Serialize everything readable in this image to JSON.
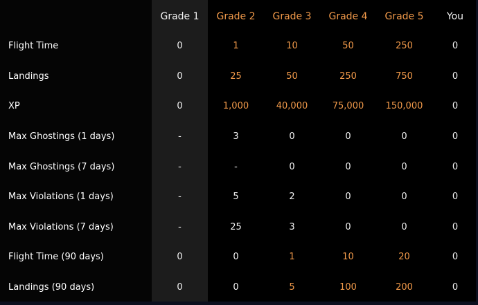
{
  "header": {
    "columns": [
      {
        "label": "Grade 1",
        "color": "#f2f2f2"
      },
      {
        "label": "Grade 2",
        "color": "#f29a4a"
      },
      {
        "label": "Grade 3",
        "color": "#f29a4a"
      },
      {
        "label": "Grade 4",
        "color": "#f29a4a"
      },
      {
        "label": "Grade 5",
        "color": "#f29a4a"
      },
      {
        "label": "You",
        "color": "#f2f2f2"
      }
    ]
  },
  "colors": {
    "background": "#000000",
    "highlight_column": "#1c1c1c",
    "text_white": "#f2f2f2",
    "text_orange": "#f29a4a"
  },
  "rows": [
    {
      "label": "Flight Time",
      "values": [
        {
          "v": "0",
          "c": "white"
        },
        {
          "v": "1",
          "c": "orange"
        },
        {
          "v": "10",
          "c": "orange"
        },
        {
          "v": "50",
          "c": "orange"
        },
        {
          "v": "250",
          "c": "orange"
        },
        {
          "v": "0",
          "c": "white"
        }
      ]
    },
    {
      "label": "Landings",
      "values": [
        {
          "v": "0",
          "c": "white"
        },
        {
          "v": "25",
          "c": "orange"
        },
        {
          "v": "50",
          "c": "orange"
        },
        {
          "v": "250",
          "c": "orange"
        },
        {
          "v": "750",
          "c": "orange"
        },
        {
          "v": "0",
          "c": "white"
        }
      ]
    },
    {
      "label": "XP",
      "values": [
        {
          "v": "0",
          "c": "white"
        },
        {
          "v": "1,000",
          "c": "orange"
        },
        {
          "v": "40,000",
          "c": "orange"
        },
        {
          "v": "75,000",
          "c": "orange"
        },
        {
          "v": "150,000",
          "c": "orange"
        },
        {
          "v": "0",
          "c": "white"
        }
      ]
    },
    {
      "label": "Max Ghostings (1 days)",
      "values": [
        {
          "v": "-",
          "c": "white"
        },
        {
          "v": "3",
          "c": "white"
        },
        {
          "v": "0",
          "c": "white"
        },
        {
          "v": "0",
          "c": "white"
        },
        {
          "v": "0",
          "c": "white"
        },
        {
          "v": "0",
          "c": "white"
        }
      ]
    },
    {
      "label": "Max Ghostings (7 days)",
      "values": [
        {
          "v": "-",
          "c": "white"
        },
        {
          "v": "-",
          "c": "white"
        },
        {
          "v": "0",
          "c": "white"
        },
        {
          "v": "0",
          "c": "white"
        },
        {
          "v": "0",
          "c": "white"
        },
        {
          "v": "0",
          "c": "white"
        }
      ]
    },
    {
      "label": "Max Violations (1 days)",
      "values": [
        {
          "v": "-",
          "c": "white"
        },
        {
          "v": "5",
          "c": "white"
        },
        {
          "v": "2",
          "c": "white"
        },
        {
          "v": "0",
          "c": "white"
        },
        {
          "v": "0",
          "c": "white"
        },
        {
          "v": "0",
          "c": "white"
        }
      ]
    },
    {
      "label": "Max Violations (7 days)",
      "values": [
        {
          "v": "-",
          "c": "white"
        },
        {
          "v": "25",
          "c": "white"
        },
        {
          "v": "3",
          "c": "white"
        },
        {
          "v": "0",
          "c": "white"
        },
        {
          "v": "0",
          "c": "white"
        },
        {
          "v": "0",
          "c": "white"
        }
      ]
    },
    {
      "label": "Flight Time (90 days)",
      "values": [
        {
          "v": "0",
          "c": "white"
        },
        {
          "v": "0",
          "c": "white"
        },
        {
          "v": "1",
          "c": "orange"
        },
        {
          "v": "10",
          "c": "orange"
        },
        {
          "v": "20",
          "c": "orange"
        },
        {
          "v": "0",
          "c": "white"
        }
      ]
    },
    {
      "label": "Landings (90 days)",
      "values": [
        {
          "v": "0",
          "c": "white"
        },
        {
          "v": "0",
          "c": "white"
        },
        {
          "v": "5",
          "c": "orange"
        },
        {
          "v": "100",
          "c": "orange"
        },
        {
          "v": "200",
          "c": "orange"
        },
        {
          "v": "0",
          "c": "white"
        }
      ]
    }
  ]
}
